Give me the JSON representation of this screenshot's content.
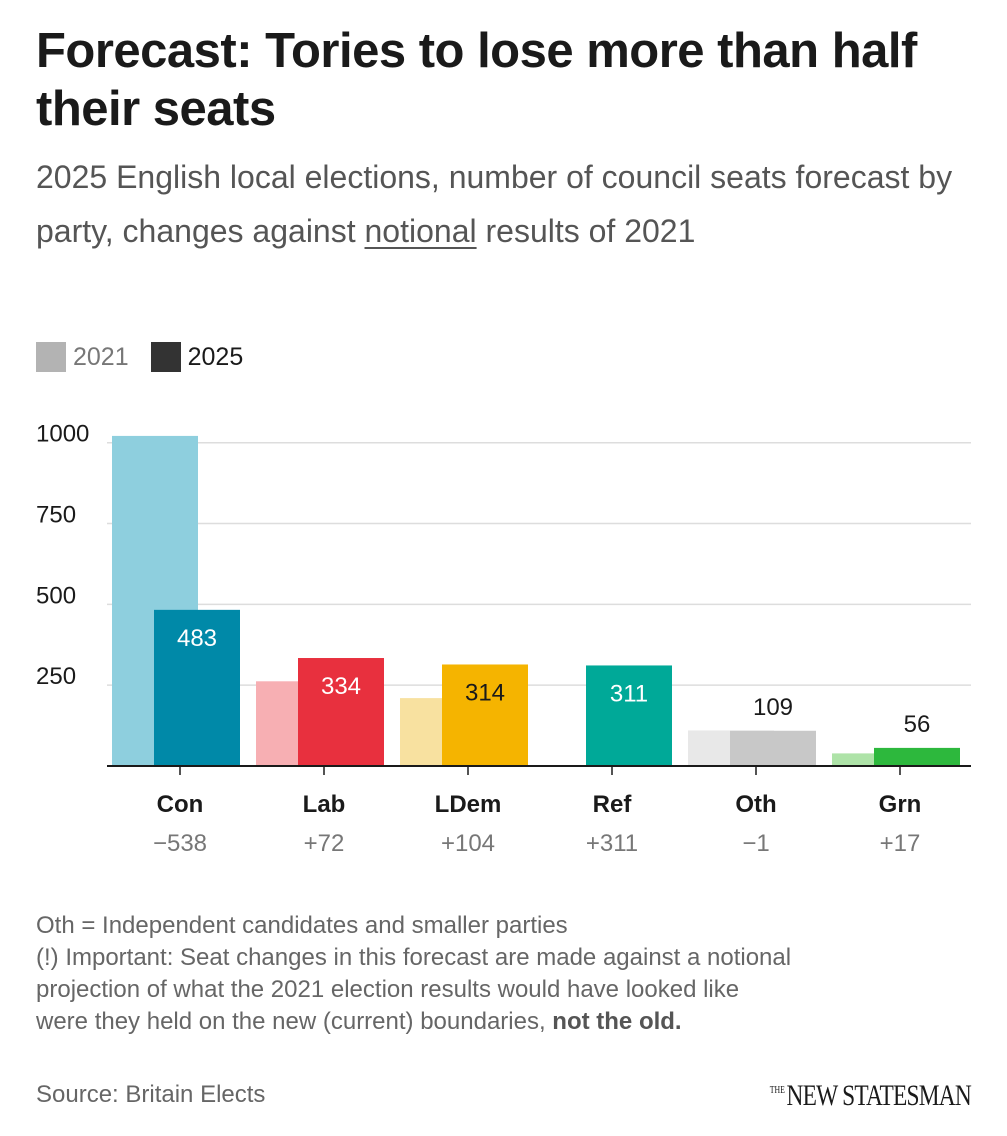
{
  "title": "Forecast: Tories to lose more than half their seats",
  "subtitle": {
    "before": "2025 English local elections, number of council seats forecast by party, changes against ",
    "underlined": "notional",
    "after": " results of 2021"
  },
  "legend": [
    {
      "label": "2021",
      "color": "#b3b3b3"
    },
    {
      "label": "2025",
      "color": "#333333"
    }
  ],
  "chart_data": {
    "type": "bar",
    "categories": [
      "Con",
      "Lab",
      "LDem",
      "Ref",
      "Oth",
      "Grn"
    ],
    "changes": [
      "−538",
      "+72",
      "+104",
      "+311",
      "−1",
      "+17"
    ],
    "series": [
      {
        "name": "2021",
        "values": [
          1021,
          262,
          210,
          0,
          110,
          39
        ]
      },
      {
        "name": "2025",
        "values": [
          483,
          334,
          314,
          311,
          109,
          56
        ]
      }
    ],
    "colors_2021": [
      "#8ecfde",
      "#f7afb3",
      "#f8e1a0",
      "#9fd9d0",
      "#e8e8e8",
      "#aee3a8"
    ],
    "colors_2025": [
      "#0089a8",
      "#e8303e",
      "#f5b400",
      "#00a998",
      "#c8c8c8",
      "#2db83d"
    ],
    "label_inside": [
      true,
      true,
      true,
      true,
      false,
      false
    ],
    "label_colors": [
      "#ffffff",
      "#ffffff",
      "#1a1a1a",
      "#ffffff",
      "#1a1a1a",
      "#1a1a1a"
    ],
    "yticks": [
      250,
      500,
      750,
      1000
    ],
    "ylim": [
      0,
      1030
    ],
    "title": "",
    "xlabel": "",
    "ylabel": ""
  },
  "notes": {
    "line1": "Oth = Independent candidates and smaller parties",
    "line2": "(!) Important: Seat changes in this forecast are made against a notional projection of what the 2021 election results would have looked like were they held on the new (current) boundaries, ",
    "line2_bold": "not the old."
  },
  "source": "Source: Britain Elects",
  "brand": {
    "small": "THE",
    "main": "NEW STATESMAN"
  }
}
